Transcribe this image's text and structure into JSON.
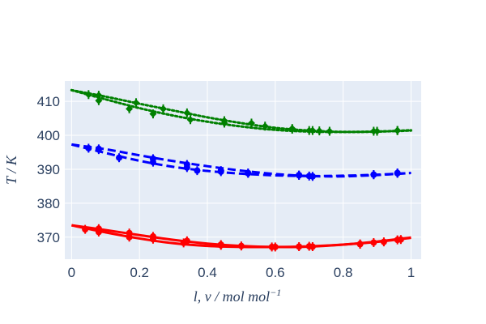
{
  "chart_data": {
    "type": "line",
    "xlabel": "l, v / mol mol",
    "xlabel_main": "l, v / mol mol",
    "xlabel_sup": "−1",
    "ylabel": "T / K",
    "xlim": [
      -0.02,
      1.03
    ],
    "ylim": [
      363.5,
      416
    ],
    "x_ticks": [
      0,
      0.2,
      0.4,
      0.6,
      0.8,
      1
    ],
    "x_tick_labels": [
      "0",
      "0.2",
      "0.4",
      "0.6",
      "0.8",
      "1"
    ],
    "y_ticks": [
      370,
      380,
      390,
      400,
      410
    ],
    "y_tick_labels": [
      "370",
      "380",
      "390",
      "400",
      "410"
    ],
    "grid": true,
    "background": "#e5ecf6",
    "series": [
      {
        "color": "#ff0000",
        "dash": "solid",
        "marker": "circle",
        "x": [
          0,
          0.1,
          0.2,
          0.3,
          0.4,
          0.5,
          0.6,
          0.7,
          0.8,
          0.9,
          1.0
        ],
        "y": [
          373.5,
          371.4,
          369.6,
          368.2,
          367.4,
          367.1,
          367.1,
          367.3,
          367.8,
          368.6,
          369.8
        ],
        "points_x": [
          0.04,
          0.08,
          0.17,
          0.24,
          0.33,
          0.44,
          0.59,
          0.67,
          0.7,
          0.85,
          0.89,
          0.96
        ],
        "points_y": [
          372.3,
          371.5,
          370.0,
          369.4,
          368.3,
          367.6,
          367.1,
          367.2,
          367.3,
          368.0,
          368.4,
          369.2
        ]
      },
      {
        "color": "#ff0000",
        "dash": "solid",
        "marker": "circle",
        "x": [
          0,
          0.1,
          0.2,
          0.3,
          0.4,
          0.5,
          0.6,
          0.7,
          0.8,
          0.9,
          1.0
        ],
        "y": [
          373.5,
          372.1,
          370.6,
          369.2,
          368.1,
          367.4,
          367.1,
          367.2,
          367.8,
          368.7,
          369.9
        ],
        "points_x": [
          0.08,
          0.17,
          0.24,
          0.34,
          0.44,
          0.5,
          0.6,
          0.71,
          0.85,
          0.92,
          0.97
        ],
        "points_y": [
          372.5,
          371.2,
          370.2,
          368.9,
          367.8,
          367.4,
          367.1,
          367.2,
          367.9,
          368.6,
          369.3
        ]
      },
      {
        "color": "#0000ff",
        "dash": "dash",
        "marker": "circle",
        "x": [
          0,
          0.1,
          0.2,
          0.3,
          0.4,
          0.5,
          0.6,
          0.7,
          0.8,
          0.9,
          1.0
        ],
        "y": [
          397.3,
          394.8,
          392.5,
          390.7,
          389.5,
          388.7,
          388.2,
          388.0,
          388.1,
          388.4,
          388.9
        ],
        "points_x": [
          0.08,
          0.14,
          0.24,
          0.34,
          0.37,
          0.44,
          0.52,
          0.67,
          0.71,
          0.89,
          0.96
        ],
        "points_y": [
          395.8,
          393.4,
          392.1,
          390.5,
          389.6,
          389.3,
          388.8,
          388.2,
          387.9,
          388.4,
          388.8
        ]
      },
      {
        "color": "#0000ff",
        "dash": "dash",
        "marker": "circle",
        "x": [
          0,
          0.1,
          0.2,
          0.3,
          0.4,
          0.5,
          0.6,
          0.7,
          0.8,
          0.9,
          1.0
        ],
        "y": [
          397.3,
          395.9,
          394.1,
          392.4,
          390.9,
          389.6,
          388.6,
          388.0,
          387.9,
          388.3,
          388.9
        ],
        "points_x": [
          0.05,
          0.08,
          0.24,
          0.34,
          0.44,
          0.52,
          0.67,
          0.7,
          0.89,
          0.96
        ],
        "points_y": [
          396.2,
          396.0,
          393.1,
          391.4,
          389.6,
          388.9,
          388.3,
          388.0,
          388.4,
          388.9
        ]
      },
      {
        "color": "#008000",
        "dash": "dot",
        "marker": "diamond",
        "x": [
          0,
          0.1,
          0.2,
          0.3,
          0.4,
          0.5,
          0.6,
          0.7,
          0.8,
          0.9,
          1.0
        ],
        "y": [
          413.3,
          410.6,
          408.0,
          405.8,
          404.0,
          402.6,
          401.6,
          401.1,
          401.0,
          401.1,
          401.4
        ],
        "points_x": [
          0.05,
          0.08,
          0.17,
          0.24,
          0.35,
          0.45,
          0.57,
          0.65,
          0.71,
          0.76,
          0.89,
          0.96
        ],
        "points_y": [
          412.0,
          410.2,
          407.8,
          406.3,
          404.6,
          403.6,
          402.7,
          401.8,
          401.4,
          401.2,
          401.2,
          401.4
        ]
      },
      {
        "color": "#008000",
        "dash": "dot",
        "marker": "diamond",
        "x": [
          0,
          0.1,
          0.2,
          0.3,
          0.4,
          0.5,
          0.6,
          0.7,
          0.8,
          0.9,
          1.0
        ],
        "y": [
          413.3,
          411.4,
          409.3,
          407.3,
          405.3,
          403.6,
          402.2,
          401.4,
          401.0,
          401.1,
          401.5
        ],
        "points_x": [
          0.08,
          0.19,
          0.27,
          0.34,
          0.45,
          0.53,
          0.65,
          0.7,
          0.73,
          0.9,
          0.96
        ],
        "points_y": [
          411.8,
          409.6,
          407.8,
          406.6,
          404.3,
          403.6,
          402.0,
          401.4,
          401.3,
          401.2,
          401.4
        ]
      }
    ]
  }
}
